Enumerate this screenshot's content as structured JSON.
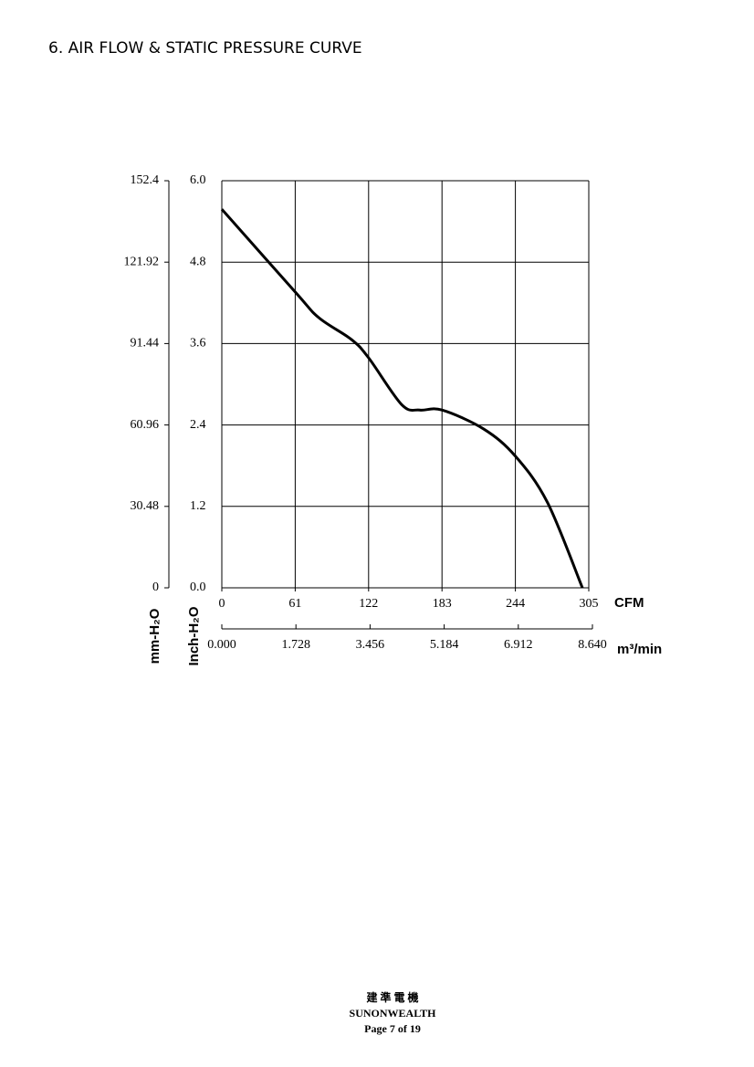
{
  "header": {
    "title": "6. AIR FLOW & STATIC PRESSURE CURVE"
  },
  "chart_data": {
    "type": "line",
    "x_label": "CFM",
    "y_label": "Inch-H₂O",
    "x2_label": "m³/min",
    "y2_label": "mm-H₂O",
    "x": [
      0,
      61,
      80.7,
      107.7,
      122,
      149.5,
      164.6,
      183,
      217.7,
      244,
      270.6,
      299.7
    ],
    "series": [
      {
        "color": "#000000",
        "values": [
          5.58,
          4.36,
          3.98,
          3.66,
          3.39,
          2.7,
          2.62,
          2.62,
          2.34,
          1.94,
          1.26,
          0
        ]
      }
    ],
    "xlim": [
      0,
      305
    ],
    "xticks": [
      0,
      61,
      122,
      183,
      244,
      305
    ],
    "ylim": [
      0,
      6
    ],
    "yticks": [
      {
        "value": 0,
        "label": "0.0"
      },
      1.2,
      2.4,
      3.6,
      4.8,
      {
        "value": 6,
        "label": "6.0"
      }
    ],
    "y2lim": [
      0,
      152.4
    ],
    "y2ticks": [
      0,
      30.48,
      60.96,
      91.44,
      121.92,
      152.4
    ],
    "x2lim": [
      0,
      8.64
    ],
    "x2ticks": [
      {
        "value": 0,
        "label": "0.000"
      },
      1.728,
      3.456,
      5.184,
      6.912,
      {
        "value": 8.64,
        "label": "8.640"
      }
    ],
    "grid": true
  },
  "footer": {
    "company_cn": "建 準 電 機",
    "company": "SUNONWEALTH",
    "page": "Page 7 of 19"
  }
}
